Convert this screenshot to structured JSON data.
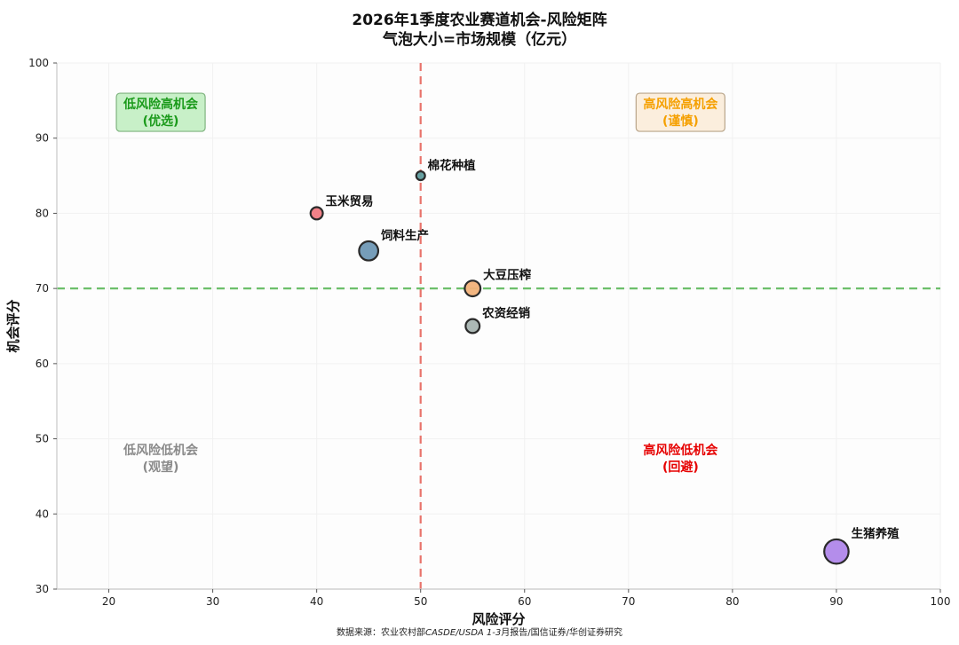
{
  "title": "2026年1季度农业赛道机会-风险矩阵",
  "subtitle": "气泡大小=市场规模（亿元）",
  "source": {
    "prefix": "数据来源：农业农村部",
    "italic": "CASDE/USDA 1-3",
    "suffix": "月报告/国信证券/华创证券研究"
  },
  "chart_data": {
    "type": "scatter",
    "xlabel": "风险评分",
    "ylabel": "机会评分",
    "xlim": [
      15,
      100
    ],
    "ylim": [
      30,
      100
    ],
    "xticks": [
      20,
      30,
      40,
      50,
      60,
      70,
      80,
      90,
      100
    ],
    "yticks": [
      30,
      40,
      50,
      60,
      70,
      80,
      90,
      100
    ],
    "grid": true,
    "reference_lines": [
      {
        "axis": "x",
        "value": 50,
        "color": "#e8736b"
      },
      {
        "axis": "y",
        "value": 70,
        "color": "#6cbf6a"
      }
    ],
    "points": [
      {
        "name": "棉花种植",
        "x": 50,
        "y": 85,
        "size": 1,
        "color": "#5f9ea0"
      },
      {
        "name": "玉米贸易",
        "x": 40,
        "y": 80,
        "size": 2,
        "color": "#f07a82"
      },
      {
        "name": "饲料生产",
        "x": 45,
        "y": 75,
        "size": 4,
        "color": "#6f98b5"
      },
      {
        "name": "大豆压榨",
        "x": 55,
        "y": 70,
        "size": 3,
        "color": "#f2b27a"
      },
      {
        "name": "农资经销",
        "x": 55,
        "y": 65,
        "size": 2.5,
        "color": "#a8b4b1"
      },
      {
        "name": "生猪养殖",
        "x": 90,
        "y": 35,
        "size": 5.5,
        "color": "#b087ea"
      }
    ],
    "quadrants": [
      {
        "line1": "低风险高机会",
        "line2": "(优选)",
        "color": "#1a9a1a",
        "bg": "#c8f0c8",
        "border": "#7fb37f",
        "x": 25,
        "y": 93.5
      },
      {
        "line1": "高风险高机会",
        "line2": "(谨慎)",
        "color": "#f5a000",
        "bg": "#fbeedd",
        "border": "#b9a58a",
        "x": 75,
        "y": 93.5
      },
      {
        "line1": "低风险低机会",
        "line2": "(观望)",
        "color": "#8a8a8a",
        "bg": "",
        "border": "",
        "x": 25,
        "y": 47.5
      },
      {
        "line1": "高风险低机会",
        "line2": "(回避)",
        "color": "#e60000",
        "bg": "",
        "border": "",
        "x": 75,
        "y": 47.5
      }
    ]
  }
}
